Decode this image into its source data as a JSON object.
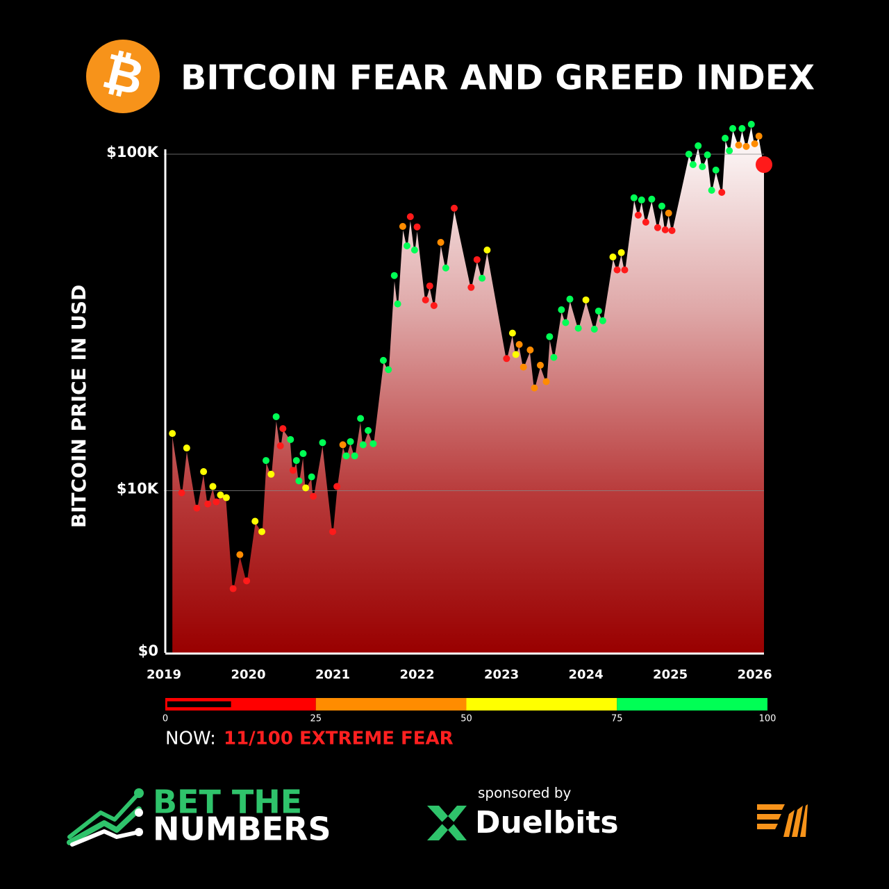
{
  "logo": "₿",
  "chart_data": {
    "type": "area",
    "title": "BITCOIN FEAR AND GREED INDEX",
    "y_label": "BITCOIN PRICE IN USD",
    "log_scale": true,
    "grid": true,
    "xlim": [
      2019,
      2026.11
    ],
    "xticks": [
      2019,
      2020,
      2021,
      2022,
      2023,
      2024,
      2025,
      2026
    ],
    "ylim": [
      3300,
      125000
    ],
    "yticks": [
      {
        "value": 0,
        "label": "$0"
      },
      {
        "value": 10000,
        "label": "$10K"
      },
      {
        "value": 100000,
        "label": "$100K"
      }
    ],
    "x": [
      2019.1,
      2019.21,
      2019.27,
      2019.39,
      2019.47,
      2019.52,
      2019.58,
      2019.62,
      2019.67,
      2019.74,
      2019.82,
      2019.9,
      2019.98,
      2020.08,
      2020.16,
      2020.21,
      2020.27,
      2020.33,
      2020.38,
      2020.41,
      2020.5,
      2020.53,
      2020.57,
      2020.6,
      2020.65,
      2020.68,
      2020.75,
      2020.77,
      2020.88,
      2021.0,
      2021.05,
      2021.12,
      2021.16,
      2021.21,
      2021.26,
      2021.33,
      2021.36,
      2021.42,
      2021.48,
      2021.6,
      2021.66,
      2021.73,
      2021.77,
      2021.83,
      2021.88,
      2021.92,
      2021.97,
      2022.0,
      2022.1,
      2022.15,
      2022.2,
      2022.28,
      2022.34,
      2022.44,
      2022.64,
      2022.71,
      2022.77,
      2022.83,
      2023.06,
      2023.13,
      2023.17,
      2023.21,
      2023.26,
      2023.34,
      2023.39,
      2023.46,
      2023.53,
      2023.57,
      2023.62,
      2023.71,
      2023.76,
      2023.81,
      2023.91,
      2024.0,
      2024.1,
      2024.15,
      2024.2,
      2024.32,
      2024.37,
      2024.42,
      2024.46,
      2024.57,
      2024.62,
      2024.66,
      2024.71,
      2024.78,
      2024.85,
      2024.9,
      2024.94,
      2024.98,
      2025.02,
      2025.22,
      2025.27,
      2025.33,
      2025.38,
      2025.44,
      2025.49,
      2025.54,
      2025.61,
      2025.65,
      2025.7,
      2025.74,
      2025.81,
      2025.85,
      2025.9,
      2025.96,
      2026.0,
      2026.05,
      2026.11
    ],
    "values": [
      14800,
      9860,
      13400,
      8880,
      11400,
      9140,
      10300,
      9270,
      9720,
      9540,
      5120,
      6460,
      5400,
      8120,
      7560,
      12300,
      11200,
      16600,
      13600,
      15300,
      14200,
      11500,
      12300,
      10700,
      12900,
      10200,
      11000,
      9630,
      13900,
      7560,
      10300,
      13700,
      12700,
      14000,
      12700,
      16400,
      13700,
      15100,
      13800,
      24400,
      22900,
      43600,
      35900,
      61000,
      53400,
      65200,
      51900,
      60800,
      36900,
      40600,
      35500,
      54700,
      45900,
      69100,
      40200,
      48600,
      42800,
      51900,
      24700,
      29400,
      25400,
      27200,
      23300,
      26200,
      20200,
      23600,
      21100,
      28700,
      24900,
      34500,
      31600,
      37100,
      30400,
      36900,
      30200,
      34200,
      32000,
      49500,
      45300,
      51000,
      45300,
      74200,
      65900,
      73100,
      62800,
      73500,
      60500,
      70100,
      59600,
      66800,
      59300,
      100000,
      93100,
      105900,
      91800,
      99500,
      78100,
      89700,
      77000,
      111500,
      102400,
      119200,
      106400,
      119200,
      105400,
      122700,
      107400,
      113100,
      93100
    ],
    "point_colors": [
      "#ffff00",
      "#ff1a1a",
      "#ffff00",
      "#ff1a1a",
      "#ffff00",
      "#ff1a1a",
      "#ffff00",
      "#ff1a1a",
      "#ffff00",
      "#ffff00",
      "#ff1a1a",
      "#ff8c00",
      "#ff1a1a",
      "#ffff00",
      "#ffff00",
      "#00ff55",
      "#ffff00",
      "#00ff55",
      "#ff1a1a",
      "#ff1a1a",
      "#00ff55",
      "#ff1a1a",
      "#00ff55",
      "#00ff55",
      "#00ff55",
      "#ffff00",
      "#00ff55",
      "#ff1a1a",
      "#00ff55",
      "#ff1a1a",
      "#ff1a1a",
      "#ff8c00",
      "#00ff55",
      "#00ff55",
      "#00ff55",
      "#00ff55",
      "#00ff55",
      "#00ff55",
      "#00ff55",
      "#00ff55",
      "#00ff55",
      "#00ff55",
      "#00ff55",
      "#ff8c00",
      "#00ff55",
      "#ff1a1a",
      "#00ff55",
      "#ff1a1a",
      "#ff1a1a",
      "#ff1a1a",
      "#ff1a1a",
      "#ff8c00",
      "#00ff55",
      "#ff1a1a",
      "#ff1a1a",
      "#ff1a1a",
      "#00ff55",
      "#ffff00",
      "#ff1a1a",
      "#ffff00",
      "#ffff00",
      "#ff8c00",
      "#ff8c00",
      "#ff8c00",
      "#ff8c00",
      "#ff8c00",
      "#ff8c00",
      "#00ff55",
      "#00ff55",
      "#00ff55",
      "#00ff55",
      "#00ff55",
      "#00ff55",
      "#ffff00",
      "#00ff55",
      "#00ff55",
      "#00ff55",
      "#ffff00",
      "#ff1a1a",
      "#ffff00",
      "#ff1a1a",
      "#00ff55",
      "#ff1a1a",
      "#00ff55",
      "#ff1a1a",
      "#00ff55",
      "#ff1a1a",
      "#00ff55",
      "#ff1a1a",
      "#ff8c00",
      "#ff1a1a",
      "#00ff55",
      "#00ff55",
      "#00ff55",
      "#00ff55",
      "#00ff55",
      "#00ff55",
      "#00ff55",
      "#ff1a1a",
      "#00ff55",
      "#00ff55",
      "#00ff55",
      "#ff8c00",
      "#00ff55",
      "#ff8c00",
      "#00ff55",
      "#ff8c00",
      "#ff8c00",
      "#ff1a1a"
    ]
  },
  "gauge": {
    "ticks": [
      0,
      25,
      50,
      75,
      100
    ],
    "colors": [
      "#ff0000",
      "#ff8c00",
      "#ffff00",
      "#00ff55"
    ],
    "value": 11,
    "now_label": "NOW:",
    "now_status": "11/100 EXTREME FEAR"
  },
  "footer": {
    "brand_line1": "BET THE",
    "brand_line2": "NUMBERS",
    "sponsor_label": "sponsored by",
    "sponsor": "Duelbits"
  }
}
